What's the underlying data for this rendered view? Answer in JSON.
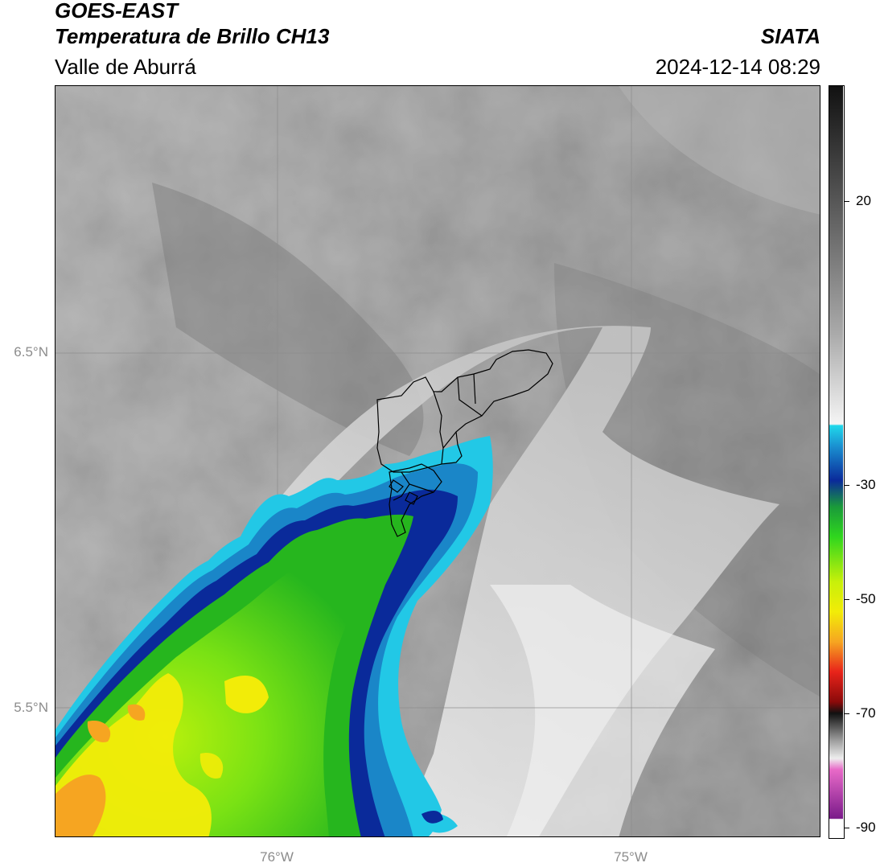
{
  "header": {
    "satellite": "GOES-EAST",
    "product": "Temperatura de Brillo CH13",
    "region": "Valle de Aburrá",
    "organization": "SIATA",
    "datetime": "2024-12-14 08:29"
  },
  "axes": {
    "lat_ticks": [
      "6.5°N",
      "5.5°N"
    ],
    "lon_ticks": [
      "76°W",
      "75°W"
    ]
  },
  "colorbar": {
    "ticks": [
      "20",
      "-30",
      "-50",
      "-70",
      "-90"
    ]
  },
  "colors": {
    "cold_cyan": "#22c8e6",
    "deep_blue": "#0a2a9a",
    "green": "#2fc61e",
    "yellow_green": "#aef00a",
    "yellow": "#f2ec08",
    "orange": "#f6a521",
    "border": "#000000",
    "gridline": "#8c8c8c"
  },
  "icons": {
    "boundary": "municipal-boundaries-valle-de-aburra"
  }
}
